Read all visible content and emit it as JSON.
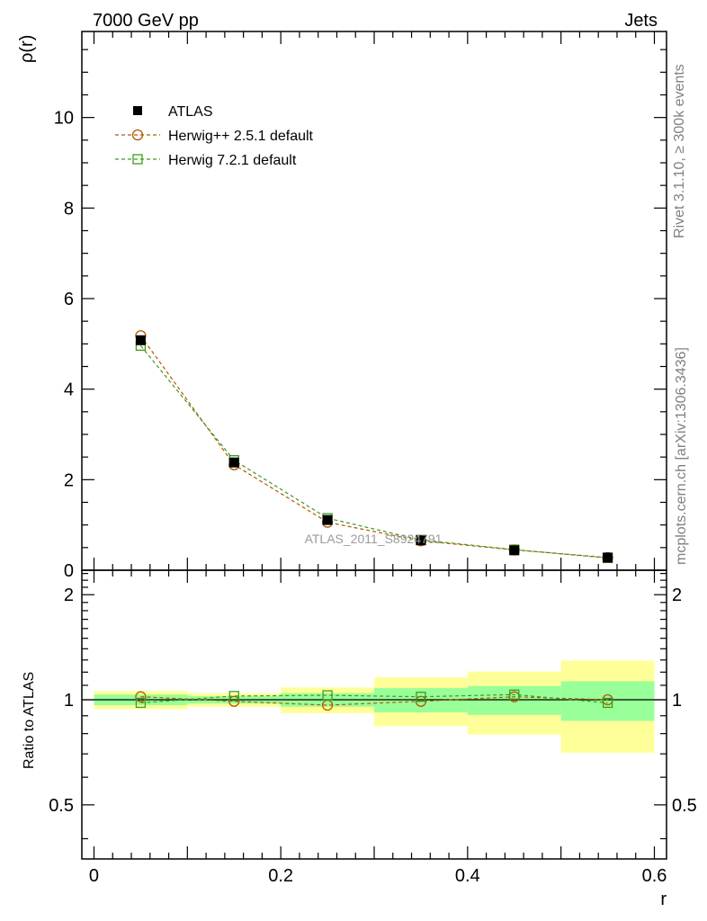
{
  "header": {
    "left_title": "7000 GeV pp",
    "right_title": "Jets"
  },
  "side_labels": {
    "rivet": "Rivet 3.1.10, ≥ 300k events",
    "mcplots": "mcplots.cern.ch [arXiv:1306.3436]"
  },
  "watermark": "ATLAS_2011_S8924791",
  "colors": {
    "data": "#000000",
    "herwigpp": "#b35900",
    "herwig7": "#3f9a1f",
    "band_inner": "#99ff99",
    "band_outer": "#ffff99"
  },
  "legend": [
    {
      "label": "ATLAS",
      "marker": "filled-square"
    },
    {
      "label": "Herwig++ 2.5.1 default",
      "marker": "open-circle"
    },
    {
      "label": "Herwig 7.2.1 default",
      "marker": "open-square"
    }
  ],
  "chart_data": [
    {
      "type": "line",
      "panel": "main",
      "title": "7000 GeV pp   Jets",
      "xlabel": "",
      "ylabel": "ρ(r)",
      "xlim": [
        -0.013,
        0.613
      ],
      "ylim": [
        0,
        11.9
      ],
      "yticks": [
        0,
        2,
        4,
        6,
        8,
        10
      ],
      "ytick_labels": [
        "0",
        "2",
        "4",
        "6",
        "8",
        "10"
      ],
      "x": [
        0.05,
        0.15,
        0.25,
        0.35,
        0.45,
        0.55
      ],
      "series": [
        {
          "name": "ATLAS",
          "values": [
            5.08,
            2.38,
            1.11,
            0.66,
            0.44,
            0.28
          ]
        },
        {
          "name": "Herwig++ 2.5.1 default",
          "values": [
            5.18,
            2.33,
            1.06,
            0.65,
            0.45,
            0.28
          ]
        },
        {
          "name": "Herwig 7.2.1 default",
          "values": [
            4.96,
            2.43,
            1.15,
            0.67,
            0.455,
            0.27
          ]
        }
      ]
    },
    {
      "type": "line",
      "panel": "ratio",
      "xlabel": "r",
      "ylabel": "Ratio to ATLAS",
      "xlim": [
        -0.013,
        0.613
      ],
      "ylim": [
        0.35,
        2.35
      ],
      "yticks": [
        0.5,
        1,
        2
      ],
      "ytick_labels": [
        "0.5",
        "1",
        "2"
      ],
      "xticks": [
        0,
        0.2,
        0.4,
        0.6
      ],
      "xtick_labels": [
        "0",
        "0.2",
        "0.4",
        "0.6"
      ],
      "bins": [
        [
          0.0,
          0.1
        ],
        [
          0.1,
          0.2
        ],
        [
          0.2,
          0.3
        ],
        [
          0.3,
          0.4
        ],
        [
          0.4,
          0.5
        ],
        [
          0.5,
          0.6
        ]
      ],
      "band_inner": [
        [
          0.965,
          1.035
        ],
        [
          0.975,
          1.025
        ],
        [
          0.955,
          1.045
        ],
        [
          0.92,
          1.08
        ],
        [
          0.905,
          1.095
        ],
        [
          0.87,
          1.13
        ]
      ],
      "band_outer": [
        [
          0.94,
          1.06
        ],
        [
          0.955,
          1.045
        ],
        [
          0.915,
          1.085
        ],
        [
          0.84,
          1.16
        ],
        [
          0.795,
          1.205
        ],
        [
          0.705,
          1.295
        ]
      ],
      "x": [
        0.05,
        0.15,
        0.25,
        0.35,
        0.45,
        0.55
      ],
      "series": [
        {
          "name": "Herwig++ 2.5.1 default",
          "values": [
            1.02,
            0.99,
            0.965,
            0.99,
            1.02,
            1.0
          ]
        },
        {
          "name": "Herwig 7.2.1 default",
          "values": [
            0.98,
            1.025,
            1.03,
            1.02,
            1.035,
            0.98
          ]
        }
      ]
    }
  ]
}
